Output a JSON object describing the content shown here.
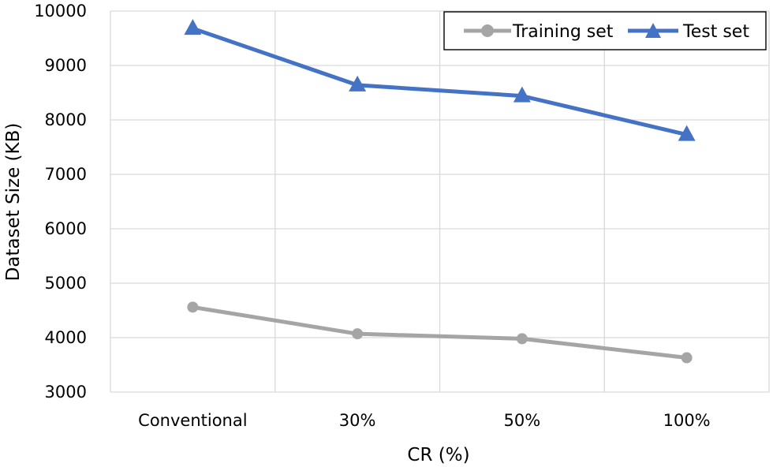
{
  "chart_data": {
    "type": "line",
    "categories": [
      "Conventional",
      "30%",
      "50%",
      "100%"
    ],
    "series": [
      {
        "name": "Training set",
        "values": [
          4560,
          4070,
          3980,
          3630
        ],
        "color": "#a5a5a5",
        "marker": "circle"
      },
      {
        "name": "Test set",
        "values": [
          9680,
          8640,
          8440,
          7730
        ],
        "color": "#4472c4",
        "marker": "triangle"
      }
    ],
    "xlabel": "CR (%)",
    "ylabel": "Dataset Size (KB)",
    "ylim": [
      3000,
      10000
    ],
    "yticks": [
      3000,
      4000,
      5000,
      6000,
      7000,
      8000,
      9000,
      10000
    ],
    "ytick_labels": [
      "3000",
      "4000",
      "5000",
      "6000",
      "7000",
      "8000",
      "9000",
      "10000"
    ],
    "grid": true,
    "legend_position": "top-right"
  }
}
